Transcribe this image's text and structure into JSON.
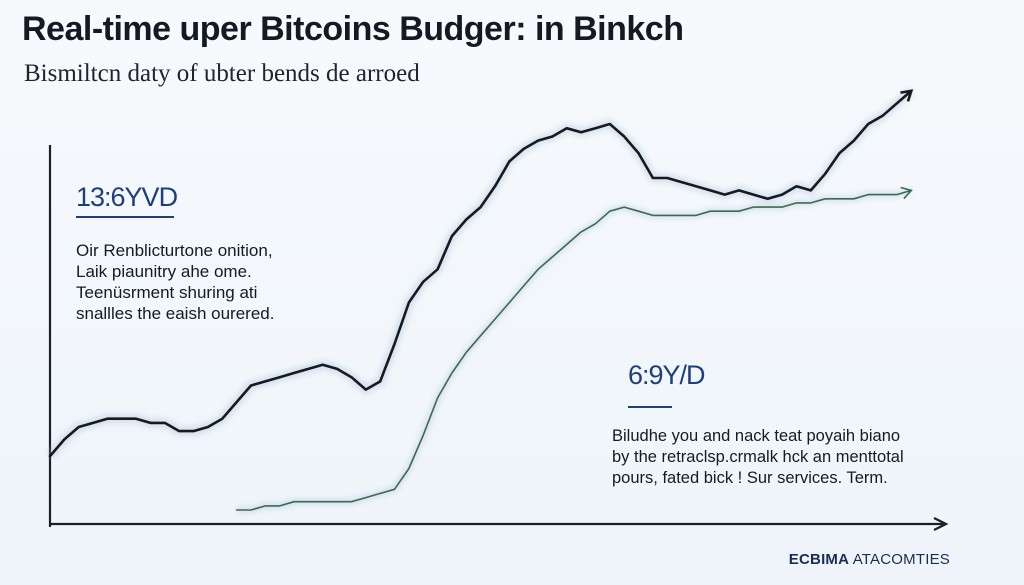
{
  "header": {
    "title": "Real-time uper Bitcoins Budger: in Binkch",
    "subtitle": "Bismiltcn daty of ubter bends de arroed"
  },
  "annotations": {
    "left": {
      "value": "13:6YVD",
      "lines": [
        "Oir Renblicturtone onition,",
        "Laik piaunitry ahe ome.",
        "Teenüsrment shuring ati",
        "snallles the eaish ourered."
      ]
    },
    "right": {
      "value": "6:9Y/D",
      "lines": [
        "Biludhe you and nack teat poyaih biano",
        "by the retraclsp.crmalk hck an menttotal",
        "pours, fated bick ! Sur services. Term."
      ]
    }
  },
  "footer": {
    "brand_bold": "ECBIMA",
    "brand_rest": " ATACOMTIES"
  },
  "colors": {
    "line_dark": "#16191e",
    "line_green": "#3d6a4f",
    "axis": "#1c1f24",
    "accent_blue": "#1e3f7a"
  },
  "chart_data": {
    "type": "line",
    "title": "Real-time uper Bitcoins Budger: in Binkch",
    "subtitle": "Bismiltcn daty of ubter bends de arroed",
    "xlabel": "",
    "ylabel": "",
    "x": [
      0,
      1,
      2,
      3,
      4,
      5,
      6,
      7,
      8,
      9,
      10,
      11,
      12,
      13,
      14,
      15,
      16,
      17,
      18,
      19,
      20,
      21,
      22,
      23,
      24,
      25,
      26,
      27,
      28,
      29,
      30,
      31,
      32,
      33,
      34,
      35,
      36,
      37,
      38,
      39,
      40,
      41,
      42,
      43,
      44,
      45,
      46,
      47,
      48,
      49,
      50,
      51,
      52,
      53,
      54,
      55,
      56,
      57,
      58,
      59,
      60
    ],
    "xlim": [
      0,
      62
    ],
    "ylim": [
      0,
      100
    ],
    "grid": false,
    "legend": "none",
    "series": [
      {
        "color": "#16191e",
        "arrow_end": true,
        "values": [
          13,
          17,
          20,
          21,
          22,
          22,
          22,
          21,
          21,
          19,
          19,
          20,
          22,
          26,
          30,
          31,
          32,
          33,
          34,
          35,
          34,
          32,
          29,
          31,
          40,
          50,
          55,
          58,
          66,
          70,
          73,
          78,
          84,
          87,
          89,
          90,
          92,
          91,
          92,
          93,
          90,
          86,
          80,
          80,
          79,
          78,
          77,
          76,
          77,
          76,
          75,
          76,
          78,
          77,
          81,
          86,
          89,
          93,
          95,
          98,
          101
        ]
      },
      {
        "color": "#3d6a4f",
        "arrow_end": true,
        "values": [
          null,
          null,
          null,
          null,
          null,
          null,
          null,
          null,
          null,
          null,
          null,
          null,
          null,
          0,
          0,
          1,
          1,
          2,
          2,
          2,
          2,
          2,
          3,
          4,
          5,
          10,
          18,
          27,
          33,
          38,
          42,
          46,
          50,
          54,
          58,
          61,
          64,
          67,
          69,
          72,
          73,
          72,
          71,
          71,
          71,
          71,
          72,
          72,
          72,
          73,
          73,
          73,
          74,
          74,
          75,
          75,
          75,
          76,
          76,
          76,
          77
        ]
      }
    ]
  }
}
